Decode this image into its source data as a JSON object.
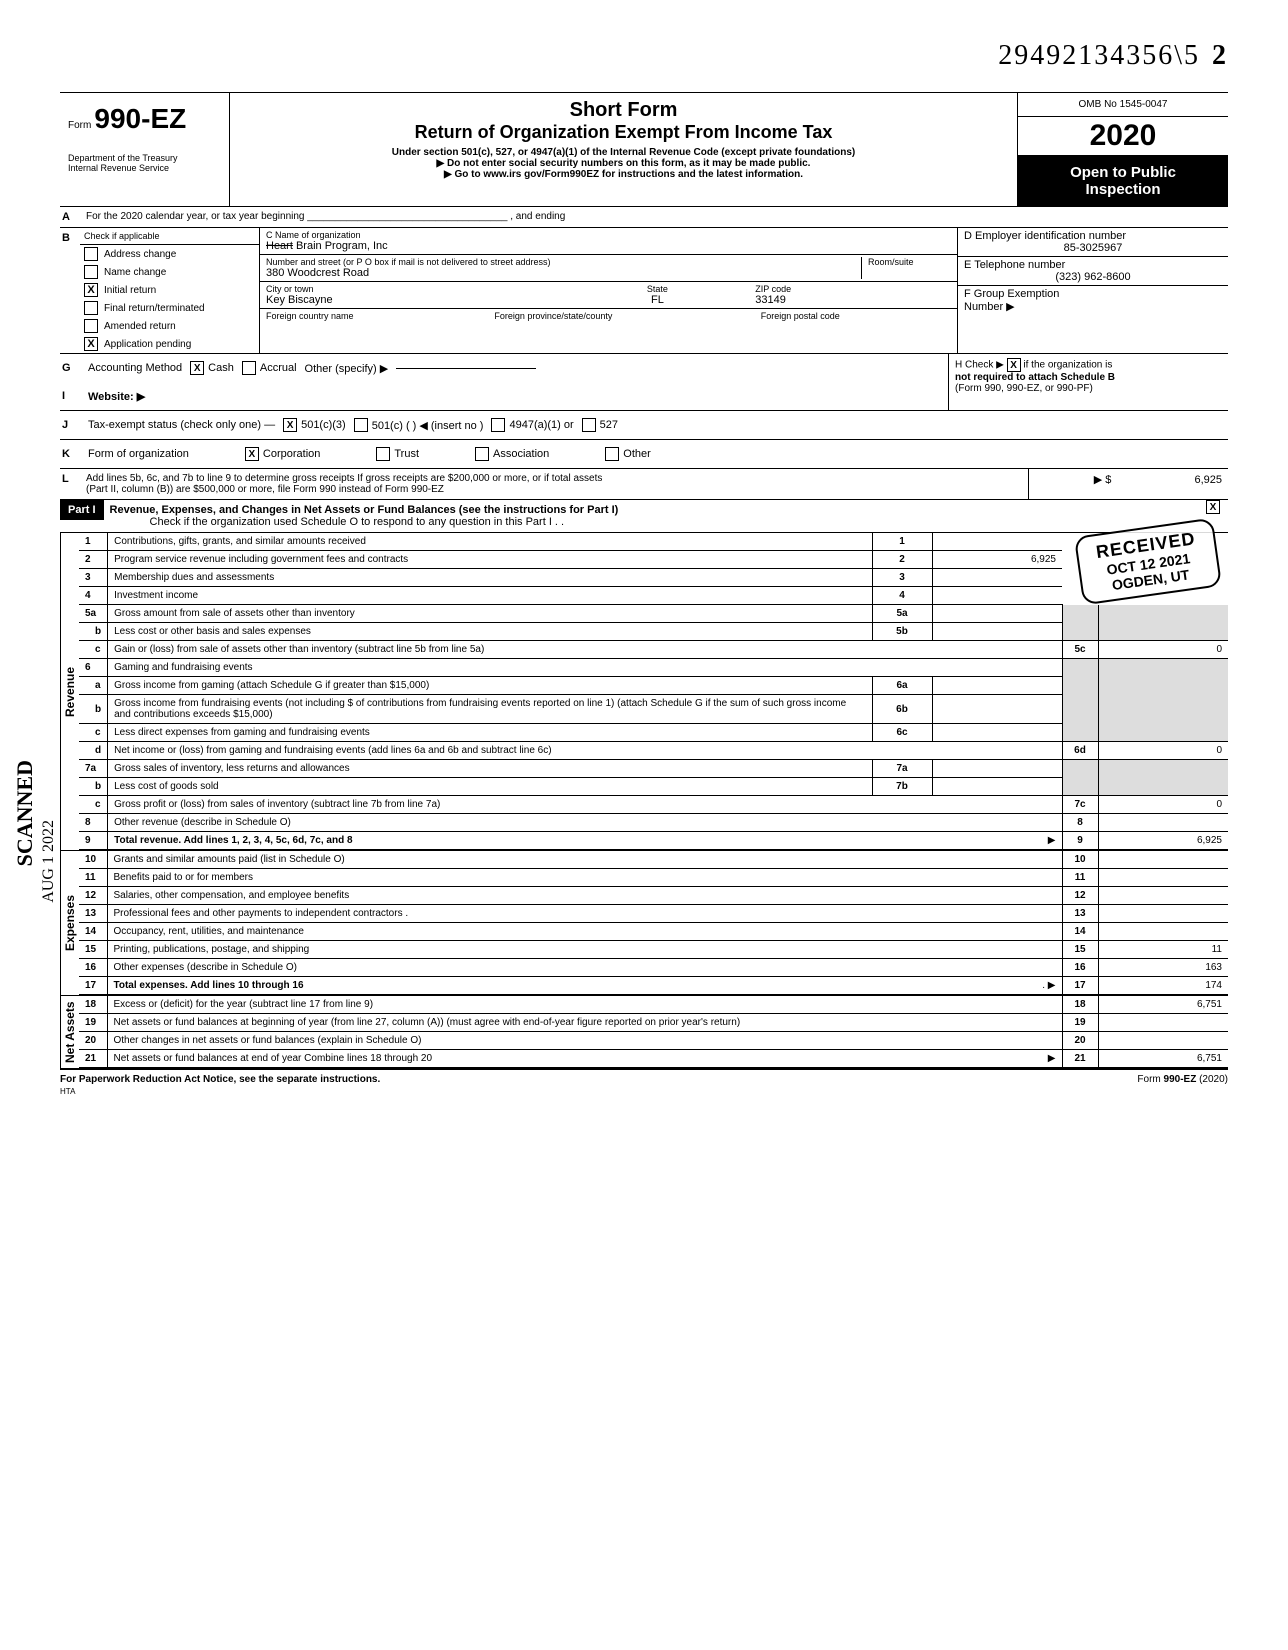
{
  "doc_number": "29492134356\\5",
  "doc_number_suffix": "2",
  "form": {
    "prefix": "Form",
    "number": "990-EZ",
    "title1": "Short Form",
    "title2": "Return of Organization Exempt From Income Tax",
    "subtitle": "Under section 501(c), 527, or 4947(a)(1) of the Internal Revenue Code (except private foundations)",
    "line_ssn": "▶  Do not enter social security numbers on this form, as it may be made public.",
    "line_goto": "▶    Go to www.irs gov/Form990EZ for instructions and the latest information.",
    "dept1": "Department of the Treasury",
    "dept2": "Internal Revenue Service",
    "omb": "OMB No 1545-0047",
    "year": "2020",
    "open1": "Open to Public",
    "open2": "Inspection"
  },
  "lineA": "For the 2020 calendar year, or tax year beginning ____________________________________ , and ending",
  "sectionB": {
    "head": "Check if applicable",
    "items": [
      {
        "label": "Address change",
        "checked": false
      },
      {
        "label": "Name change",
        "checked": false
      },
      {
        "label": "Initial return",
        "checked": true
      },
      {
        "label": "Final return/terminated",
        "checked": false
      },
      {
        "label": "Amended return",
        "checked": false
      },
      {
        "label": "Application pending",
        "checked": true
      }
    ]
  },
  "sectionC": {
    "name_label": "C  Name of organization",
    "name_strike": "Heart",
    "name_rest": " Brain Program, Inc",
    "street_label": "Number and street (or P O  box if mail is not delivered to street address)",
    "room_label": "Room/suite",
    "street": "380 Woodcrest Road",
    "city_label": "City or town",
    "state_label": "State",
    "zip_label": "ZIP code",
    "city": "Key Biscayne",
    "state": "FL",
    "zip": "33149",
    "foreign_country_label": "Foreign country name",
    "foreign_prov_label": "Foreign province/state/county",
    "foreign_postal_label": "Foreign postal code"
  },
  "sectionD": {
    "label": "D  Employer identification number",
    "value": "85-3025967"
  },
  "sectionE": {
    "label": "E  Telephone number",
    "value": "(323) 962-8600"
  },
  "sectionF": {
    "label": "F  Group Exemption",
    "label2": "Number ▶"
  },
  "lineG": {
    "letter": "G",
    "label": "Accounting Method",
    "cash": "Cash",
    "accrual": "Accrual",
    "other": "Other (specify)    ▶",
    "cash_checked": true
  },
  "lineH": {
    "label": "H  Check ▶",
    "text": "if the organization is",
    "text2": "not required to attach Schedule B",
    "text3": "(Form 990, 990-EZ, or 990-PF)",
    "checked": true
  },
  "lineI": {
    "letter": "I",
    "label": "Website: ▶"
  },
  "lineJ": {
    "letter": "J",
    "label": "Tax-exempt status (check only one) —",
    "opts": [
      "501(c)(3)",
      "501(c) (          ) ◀ (insert no )",
      "4947(a)(1) or",
      "527"
    ],
    "checked_idx": 0
  },
  "lineK": {
    "letter": "K",
    "label": "Form of organization",
    "opts": [
      "Corporation",
      "Trust",
      "Association",
      "Other"
    ],
    "checked_idx": 0
  },
  "lineL": {
    "letter": "L",
    "text1": "Add lines 5b, 6c, and 7b to line 9 to determine gross receipts  If gross receipts are $200,000 or more, or if total assets",
    "text2": "(Part II, column (B)) are $500,000 or more, file Form 990 instead of Form 990-EZ",
    "arrow": "▶ $",
    "value": "6,925"
  },
  "part1": {
    "badge": "Part I",
    "title": "Revenue, Expenses, and Changes in Net Assets or Fund Balances (see the instructions for Part I)",
    "check_text": "Check if the organization used Schedule O to respond to any question in this Part I  .  .",
    "checked": true
  },
  "stamp": {
    "r1": "RECEIVED",
    "r2": "OCT 12 2021",
    "r3": "OGDEN, UT"
  },
  "scanned": "SCANNED",
  "scan_date": "AUG 1  2022",
  "revenue_label": "Revenue",
  "expenses_label": "Expenses",
  "netassets_label": "Net Assets",
  "lines": {
    "1": {
      "n": "1",
      "d": "Contributions, gifts, grants, and similar amounts received",
      "box": "1",
      "val": ""
    },
    "2": {
      "n": "2",
      "d": "Program service revenue including government fees and contracts",
      "box": "2",
      "val": "6,925"
    },
    "3": {
      "n": "3",
      "d": "Membership dues and assessments",
      "box": "3",
      "val": ""
    },
    "4": {
      "n": "4",
      "d": "Investment income",
      "box": "4",
      "val": ""
    },
    "5a": {
      "n": "5a",
      "d": "Gross amount from sale of assets other than inventory",
      "mid": "5a"
    },
    "5b": {
      "n": "b",
      "d": "Less  cost or other basis and sales expenses",
      "mid": "5b"
    },
    "5c": {
      "n": "c",
      "d": "Gain or (loss) from sale of assets other than inventory (subtract line 5b from line 5a)",
      "box": "5c",
      "val": "0"
    },
    "6": {
      "n": "6",
      "d": "Gaming and fundraising events"
    },
    "6a": {
      "n": "a",
      "d": "Gross income from gaming (attach Schedule G if greater than $15,000)",
      "mid": "6a"
    },
    "6b": {
      "n": "b",
      "d": "Gross income from fundraising events (not including         $                      of contributions from fundraising events reported on line 1) (attach Schedule G if the sum of such gross income and contributions exceeds $15,000)",
      "mid": "6b"
    },
    "6c": {
      "n": "c",
      "d": "Less  direct expenses from gaming and fundraising events",
      "mid": "6c"
    },
    "6d": {
      "n": "d",
      "d": "Net income or (loss) from gaming and fundraising events (add lines 6a and 6b and subtract line 6c)",
      "box": "6d",
      "val": "0"
    },
    "7a": {
      "n": "7a",
      "d": "Gross sales of inventory, less returns and allowances",
      "mid": "7a"
    },
    "7b": {
      "n": "b",
      "d": "Less  cost of goods sold",
      "mid": "7b"
    },
    "7c": {
      "n": "c",
      "d": "Gross profit or (loss) from sales of inventory (subtract line 7b from line 7a)",
      "box": "7c",
      "val": "0"
    },
    "8": {
      "n": "8",
      "d": "Other revenue (describe in Schedule O)",
      "box": "8",
      "val": ""
    },
    "9": {
      "n": "9",
      "d": "Total revenue. Add lines 1, 2, 3, 4, 5c, 6d, 7c, and 8",
      "box": "9",
      "val": "6,925",
      "arrow": true,
      "bold": true
    },
    "10": {
      "n": "10",
      "d": "Grants and similar amounts paid (list in Schedule O)",
      "box": "10",
      "val": ""
    },
    "11": {
      "n": "11",
      "d": "Benefits paid to or for members",
      "box": "11",
      "val": ""
    },
    "12": {
      "n": "12",
      "d": "Salaries, other compensation, and employee benefits",
      "box": "12",
      "val": ""
    },
    "13": {
      "n": "13",
      "d": "Professional fees and other payments to independent contractors   .",
      "box": "13",
      "val": ""
    },
    "14": {
      "n": "14",
      "d": "Occupancy, rent, utilities, and maintenance",
      "box": "14",
      "val": ""
    },
    "15": {
      "n": "15",
      "d": "Printing, publications, postage, and shipping",
      "box": "15",
      "val": "11"
    },
    "16": {
      "n": "16",
      "d": "Other expenses (describe in Schedule O)",
      "box": "16",
      "val": "163"
    },
    "17": {
      "n": "17",
      "d": "Total expenses. Add lines 10 through 16",
      "box": "17",
      "val": "174",
      "arrow": true,
      "bold": true
    },
    "18": {
      "n": "18",
      "d": "Excess or (deficit) for the year (subtract line 17 from line 9)",
      "box": "18",
      "val": "6,751"
    },
    "19": {
      "n": "19",
      "d": "Net assets or fund balances at beginning of year (from line 27, column (A)) (must agree with end-of-year figure reported on prior year's return)",
      "box": "19",
      "val": ""
    },
    "20": {
      "n": "20",
      "d": "Other changes in net assets or fund balances (explain in Schedule O)",
      "box": "20",
      "val": ""
    },
    "21": {
      "n": "21",
      "d": "Net assets or fund balances at end of year  Combine lines 18 through 20",
      "box": "21",
      "val": "6,751",
      "arrow": true
    }
  },
  "footer": {
    "left": "For Paperwork Reduction Act Notice, see the separate instructions.",
    "right": "Form 990-EZ (2020)",
    "hta": "HTA"
  }
}
